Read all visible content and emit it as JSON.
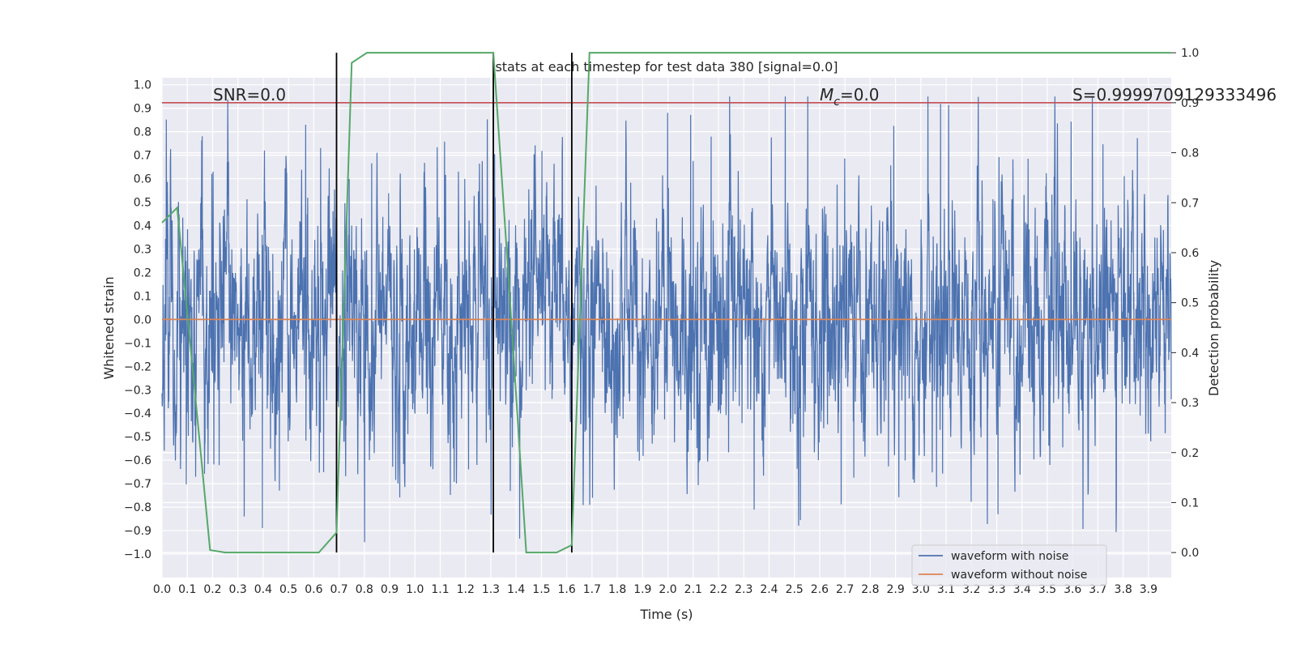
{
  "chart_data": {
    "type": "line",
    "title": "stats at each timestep for test data 380 [signal=0.0]",
    "xlabel": "Time (s)",
    "ylabel": "Whitened strain",
    "y2label": "Detection probability",
    "xlim": [
      0.0,
      3.99
    ],
    "ylim": [
      -1.1,
      1.03
    ],
    "y2lim": [
      -0.05,
      0.95
    ],
    "x_ticks": [
      "0.0",
      "0.1",
      "0.2",
      "0.3",
      "0.4",
      "0.5",
      "0.6",
      "0.7",
      "0.8",
      "0.9",
      "1.0",
      "1.1",
      "1.2",
      "1.3",
      "1.4",
      "1.5",
      "1.6",
      "1.7",
      "1.8",
      "1.9",
      "2.0",
      "2.1",
      "2.2",
      "2.3",
      "2.4",
      "2.5",
      "2.6",
      "2.7",
      "2.8",
      "2.9",
      "3.0",
      "3.1",
      "3.2",
      "3.3",
      "3.4",
      "3.5",
      "3.6",
      "3.7",
      "3.8",
      "3.9"
    ],
    "y_ticks": [
      "1.0",
      "0.9",
      "0.8",
      "0.7",
      "0.6",
      "0.5",
      "0.4",
      "0.3",
      "0.2",
      "0.1",
      "0.0",
      "−0.1",
      "−0.2",
      "−0.3",
      "−0.4",
      "−0.5",
      "−0.6",
      "−0.7",
      "−0.8",
      "−0.9",
      "−1.0"
    ],
    "y2_ticks": [
      "1.0",
      "0.9",
      "0.8",
      "0.7",
      "0.6",
      "0.5",
      "0.4",
      "0.3",
      "0.2",
      "0.1",
      "0.0"
    ],
    "grid": true,
    "legend_position": "lower-right",
    "annotations": {
      "snr": "SNR=0.0",
      "mc_symbol": "M",
      "mc_sub": "c",
      "mc_value": "=0.0",
      "s": "S=0.9999709129333496"
    },
    "series": [
      {
        "name": "waveform with noise",
        "color": "#4c72b0",
        "description_note": "dense noise trace",
        "noise_amplitude_typical": 0.35,
        "noise_amplitude_max": 1.0,
        "sample_rate": 1000
      },
      {
        "name": "waveform without noise",
        "color": "#dd8452",
        "y_constant": 0.0
      },
      {
        "name": "",
        "color": "#55a868",
        "axis": "right",
        "x": [
          0.0,
          0.06,
          0.19,
          0.25,
          0.62,
          0.69,
          0.75,
          0.81,
          1.31,
          1.37,
          1.44,
          1.56,
          1.62,
          1.69,
          1.75,
          3.99
        ],
        "y": [
          0.66,
          0.69,
          0.005,
          0.0,
          0.0,
          0.04,
          0.98,
          1.0,
          1.0,
          0.55,
          0.0,
          0.0,
          0.015,
          1.0,
          1.0,
          1.0
        ]
      }
    ],
    "threshold_line": {
      "color": "#c44e52",
      "y2": 0.9
    },
    "vertical_markers": {
      "color": "#000000",
      "x": [
        0.69,
        1.31,
        1.62
      ],
      "y2_range": [
        0.0,
        1.0
      ]
    }
  }
}
